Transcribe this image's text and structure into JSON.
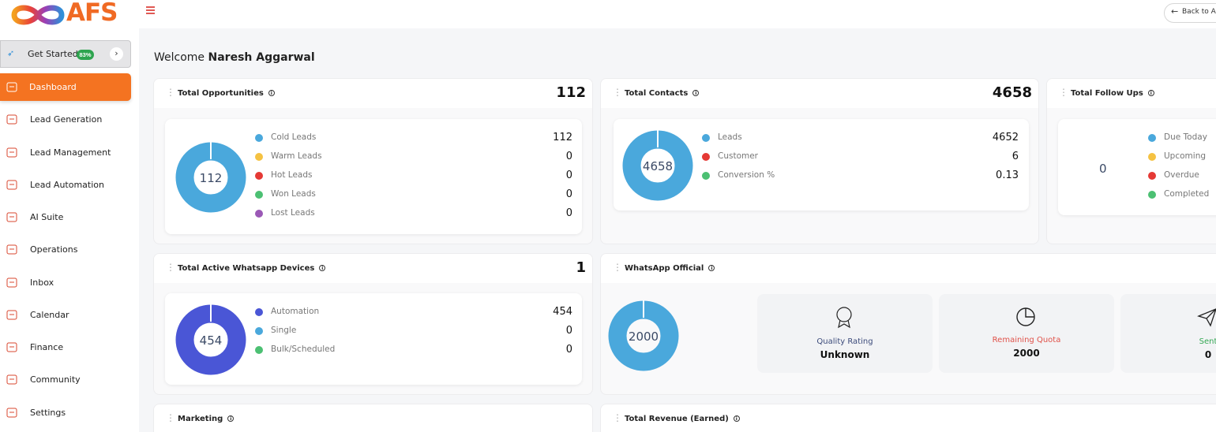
{
  "logo": "AFS",
  "top_bar": {
    "back": "Back to A"
  },
  "sidebar": {
    "get_started": {
      "label": "Get Started",
      "badge": "83%"
    },
    "items": [
      "Dashboard",
      "Lead Generation",
      "Lead Management",
      "Lead Automation",
      "AI Suite",
      "Operations",
      "Inbox",
      "Calendar",
      "Finance",
      "Community",
      "Settings"
    ]
  },
  "welcome": {
    "greeting": "Welcome",
    "name": "Naresh Aggarwal"
  },
  "cards": {
    "opportunities": {
      "title": "Total Opportunities",
      "total": 112,
      "center": 112,
      "ring_color": "#4aa8dc",
      "legend": [
        {
          "label": "Cold Leads",
          "color": "#4aa8dc",
          "value": 112
        },
        {
          "label": "Warm Leads",
          "color": "#f5c242",
          "value": 0
        },
        {
          "label": "Hot Leads",
          "color": "#e53935",
          "value": 0
        },
        {
          "label": "Won Leads",
          "color": "#4cc073",
          "value": 0
        },
        {
          "label": "Lost Leads",
          "color": "#9b59b6",
          "value": 0
        }
      ]
    },
    "contacts": {
      "title": "Total Contacts",
      "total": 4658,
      "center": 4658,
      "ring_color": "#4aa8dc",
      "legend": [
        {
          "label": "Leads",
          "color": "#4aa8dc",
          "value": 4652
        },
        {
          "label": "Customer",
          "color": "#e53935",
          "value": 6
        },
        {
          "label": "Conversion %",
          "color": "#4cc073",
          "value": 0.13
        }
      ]
    },
    "follow_ups": {
      "title": "Total Follow Ups",
      "center": 0,
      "legend": [
        {
          "label": "Due Today",
          "color": "#4aa8dc"
        },
        {
          "label": "Upcoming",
          "color": "#f5c242"
        },
        {
          "label": "Overdue",
          "color": "#e53935"
        },
        {
          "label": "Completed",
          "color": "#4cc073"
        }
      ]
    },
    "whatsapp_devices": {
      "title": "Total Active Whatsapp Devices",
      "total": 1,
      "center": 454,
      "ring_color": "#4a56d6",
      "legend": [
        {
          "label": "Automation",
          "color": "#4a56d6",
          "value": 454
        },
        {
          "label": "Single",
          "color": "#4aa8dc",
          "value": 0
        },
        {
          "label": "Bulk/Scheduled",
          "color": "#4cc073",
          "value": 0
        }
      ]
    },
    "whatsapp_official": {
      "title": "WhatsApp Official",
      "center": 2000,
      "ring_color": "#4aa8dc",
      "stats": [
        {
          "label": "Quality Rating",
          "value": "Unknown",
          "color": "#3b4a7a"
        },
        {
          "label": "Remaining Quota",
          "value": 2000,
          "color": "#e0524a"
        },
        {
          "label": "Sent",
          "value": 0,
          "color": "#34a853"
        }
      ]
    },
    "marketing": {
      "title": "Marketing"
    },
    "revenue": {
      "title": "Total Revenue (Earned)"
    }
  }
}
